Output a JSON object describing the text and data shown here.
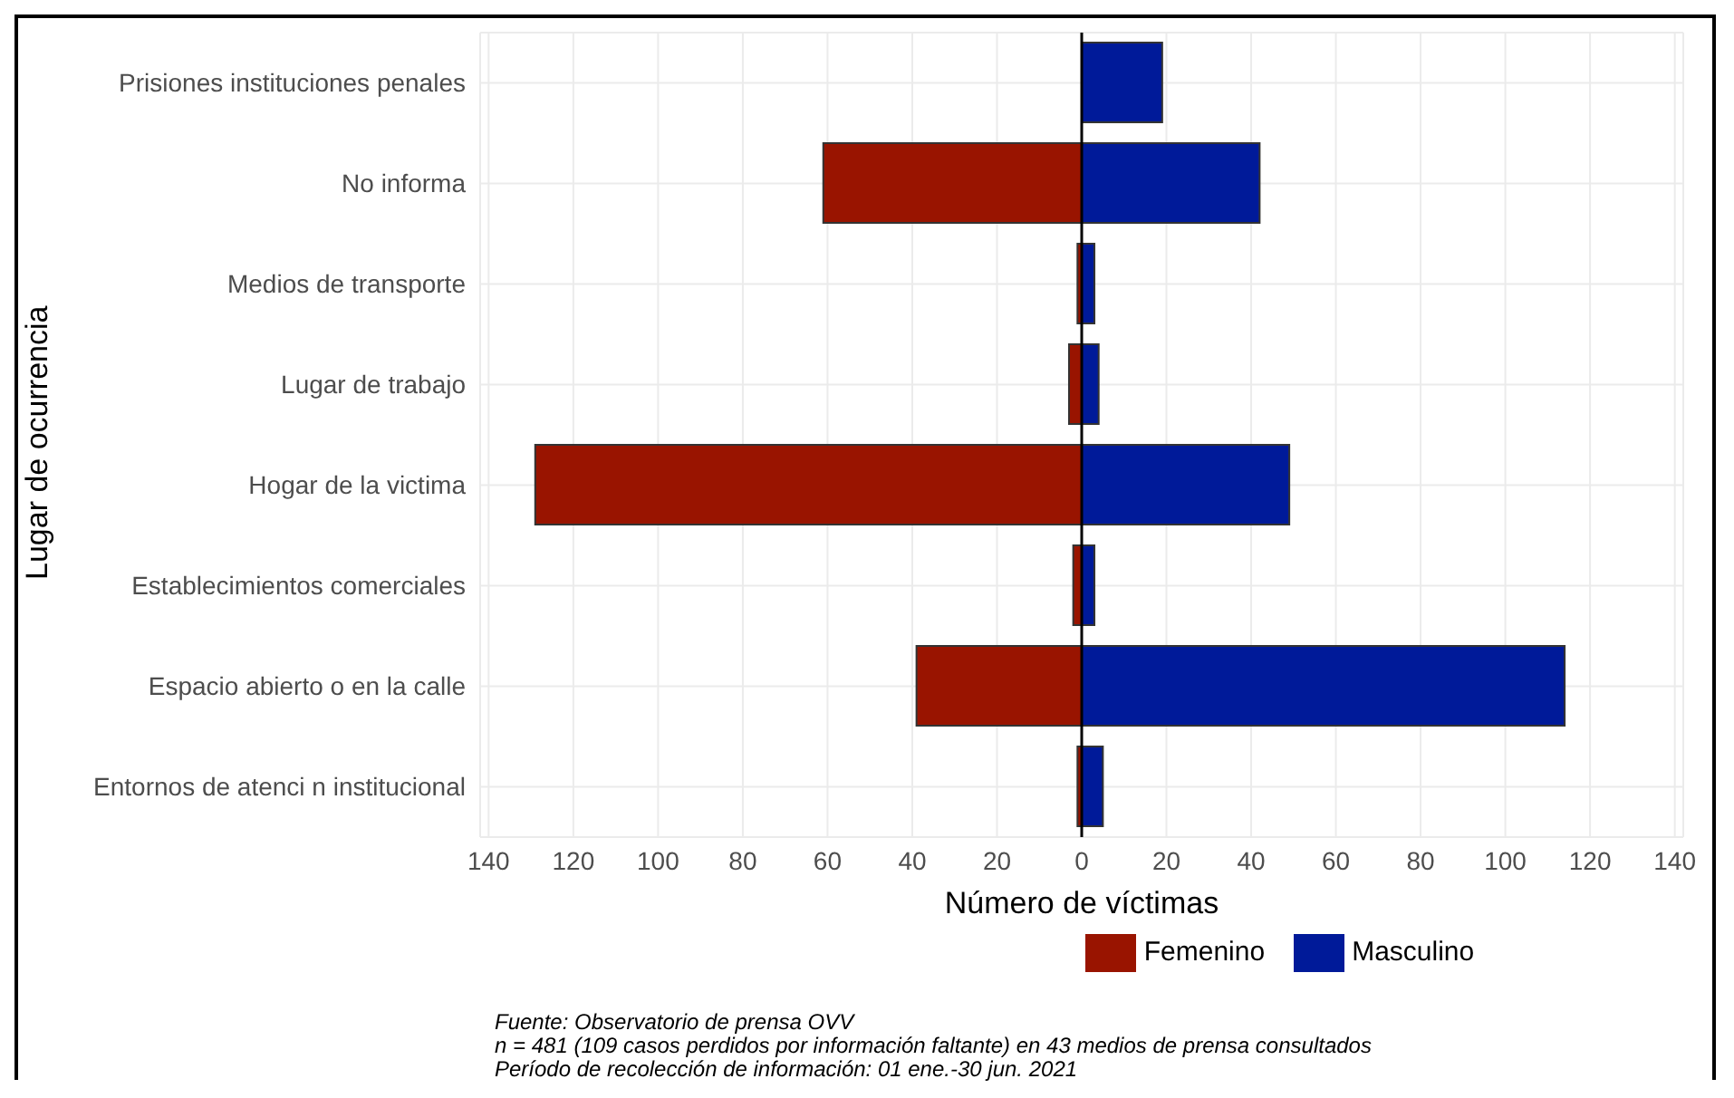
{
  "chart_data": {
    "type": "bar",
    "orientation": "horizontal",
    "stacked": true,
    "xlabel": "Número de víctimas",
    "ylabel": "Lugar de ocurrencia",
    "categories": [
      "Prisiones  instituciones penales",
      "No informa",
      "Medios de transporte",
      "Lugar de trabajo",
      "Hogar de la victima",
      "Establecimientos comerciales",
      "Espacio abierto o en la calle",
      "Entornos de atenci n institucional"
    ],
    "series": [
      {
        "name": "Femenino",
        "color": "#991400",
        "values": [
          0,
          -61,
          -1,
          -3,
          -129,
          -2,
          -39,
          -1
        ]
      },
      {
        "name": "Masculino",
        "color": "#001a99",
        "values": [
          19,
          42,
          3,
          4,
          49,
          3,
          114,
          5
        ]
      }
    ],
    "xlim": [
      -142,
      142
    ],
    "xticks": [
      {
        "value": -140,
        "label": "140"
      },
      {
        "value": -120,
        "label": "120"
      },
      {
        "value": -100,
        "label": "100"
      },
      {
        "value": -80,
        "label": "80"
      },
      {
        "value": -60,
        "label": "60"
      },
      {
        "value": -40,
        "label": "40"
      },
      {
        "value": -20,
        "label": "20"
      },
      0,
      20,
      40,
      60,
      80,
      100,
      120,
      140
    ],
    "ref_lines": [
      {
        "axis": "x",
        "value": 0,
        "color": "#000000"
      }
    ],
    "grid": true,
    "legend": "bottom",
    "annotations": [
      "Fuente: Observatorio de prensa OVV",
      "n = 481 (109 casos perdidos por información faltante) en 43 medios de prensa consultados",
      "Período de recolección de información: 01 ene.-30 jun. 2021"
    ]
  }
}
